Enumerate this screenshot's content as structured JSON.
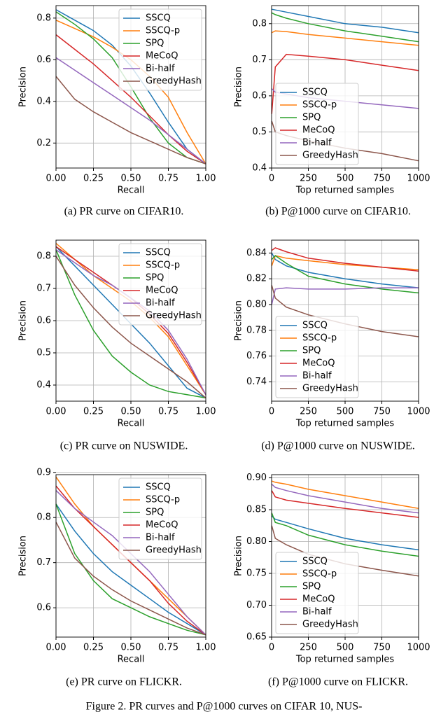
{
  "figure_caption": "Figure 2. PR curves and P@1000 curves on CIFAR 10, NUS-",
  "chart_data": [
    {
      "type": "line",
      "caption": "(a) PR curve on CIFAR10.",
      "xlabel": "Recall",
      "ylabel": "Precision",
      "legend": "upper right",
      "grid": true,
      "xlim": [
        0,
        1
      ],
      "xticks": [
        {
          "value": 0,
          "label": "0.00"
        },
        0.25,
        {
          "value": 0.5,
          "label": "0.50"
        },
        0.75,
        {
          "value": 1,
          "label": "1.00"
        }
      ],
      "ylim": [
        0.08,
        0.86
      ],
      "yticks": [
        0.2,
        0.4,
        0.6,
        0.8
      ],
      "x": [
        0,
        0.125,
        0.25,
        0.375,
        0.5,
        0.625,
        0.75,
        0.875,
        1
      ],
      "series": [
        {
          "name": "SSCQ",
          "color": "#1f77b4",
          "values": [
            0.84,
            0.79,
            0.74,
            0.67,
            0.57,
            0.44,
            0.3,
            0.17,
            0.1
          ]
        },
        {
          "name": "SSCQ-p",
          "color": "#ff7f0e",
          "values": [
            0.79,
            0.75,
            0.71,
            0.66,
            0.6,
            0.52,
            0.42,
            0.25,
            0.1
          ]
        },
        {
          "name": "SPQ",
          "color": "#2ca02c",
          "values": [
            0.83,
            0.77,
            0.7,
            0.61,
            0.47,
            0.32,
            0.2,
            0.13,
            0.1
          ]
        },
        {
          "name": "MeCoQ",
          "color": "#d62728",
          "values": [
            0.72,
            0.65,
            0.58,
            0.5,
            0.42,
            0.33,
            0.24,
            0.16,
            0.1
          ]
        },
        {
          "name": "Bi-half",
          "color": "#9467bd",
          "values": [
            0.61,
            0.55,
            0.49,
            0.43,
            0.37,
            0.31,
            0.24,
            0.17,
            0.1
          ]
        },
        {
          "name": "GreedyHash",
          "color": "#8c564b",
          "values": [
            0.52,
            0.41,
            0.35,
            0.3,
            0.25,
            0.21,
            0.17,
            0.13,
            0.1
          ]
        }
      ]
    },
    {
      "type": "line",
      "caption": "(b) P@1000 curve on CIFAR10.",
      "xlabel": "Top returned samples",
      "ylabel": "Precision",
      "legend": "lower left",
      "grid": true,
      "xlim": [
        0,
        1000
      ],
      "xticks": [
        0,
        250,
        500,
        750,
        1000
      ],
      "ylim": [
        0.4,
        0.85
      ],
      "yticks": [
        0.4,
        0.5,
        0.6,
        0.7,
        0.8
      ],
      "x": [
        1,
        25,
        100,
        250,
        500,
        750,
        1000
      ],
      "series": [
        {
          "name": "SSCQ",
          "color": "#1f77b4",
          "values": [
            0.84,
            0.838,
            0.832,
            0.82,
            0.8,
            0.79,
            0.775
          ]
        },
        {
          "name": "SSCQ-p",
          "color": "#ff7f0e",
          "values": [
            0.775,
            0.78,
            0.778,
            0.77,
            0.76,
            0.75,
            0.74
          ]
        },
        {
          "name": "SPQ",
          "color": "#2ca02c",
          "values": [
            0.83,
            0.825,
            0.815,
            0.8,
            0.78,
            0.765,
            0.75
          ]
        },
        {
          "name": "MeCoQ",
          "color": "#d62728",
          "values": [
            0.55,
            0.68,
            0.715,
            0.71,
            0.7,
            0.685,
            0.67
          ]
        },
        {
          "name": "Bi-half",
          "color": "#9467bd",
          "values": [
            0.62,
            0.61,
            0.605,
            0.595,
            0.585,
            0.575,
            0.565
          ]
        },
        {
          "name": "GreedyHash",
          "color": "#8c564b",
          "values": [
            0.53,
            0.5,
            0.49,
            0.475,
            0.455,
            0.44,
            0.42
          ]
        }
      ]
    },
    {
      "type": "line",
      "caption": "(c) PR curve on NUSWIDE.",
      "xlabel": "Recall",
      "ylabel": "Precision",
      "legend": "upper right",
      "grid": true,
      "xlim": [
        0,
        1
      ],
      "xticks": [
        {
          "value": 0,
          "label": "0.00"
        },
        0.25,
        {
          "value": 0.5,
          "label": "0.50"
        },
        0.75,
        {
          "value": 1,
          "label": "1.00"
        }
      ],
      "ylim": [
        0.35,
        0.85
      ],
      "yticks": [
        0.4,
        0.5,
        0.6,
        0.7,
        0.8
      ],
      "x": [
        0,
        0.125,
        0.25,
        0.375,
        0.5,
        0.625,
        0.75,
        0.875,
        1
      ],
      "series": [
        {
          "name": "SSCQ",
          "color": "#1f77b4",
          "values": [
            0.83,
            0.77,
            0.71,
            0.65,
            0.59,
            0.53,
            0.46,
            0.39,
            0.36
          ]
        },
        {
          "name": "SSCQ-p",
          "color": "#ff7f0e",
          "values": [
            0.84,
            0.79,
            0.74,
            0.7,
            0.66,
            0.61,
            0.55,
            0.46,
            0.37
          ]
        },
        {
          "name": "SPQ",
          "color": "#2ca02c",
          "values": [
            0.82,
            0.68,
            0.57,
            0.49,
            0.44,
            0.4,
            0.38,
            0.37,
            0.36
          ]
        },
        {
          "name": "MeCoQ",
          "color": "#d62728",
          "values": [
            0.83,
            0.79,
            0.75,
            0.71,
            0.67,
            0.62,
            0.56,
            0.47,
            0.37
          ]
        },
        {
          "name": "Bi-half",
          "color": "#9467bd",
          "values": [
            0.82,
            0.78,
            0.74,
            0.71,
            0.67,
            0.63,
            0.57,
            0.48,
            0.37
          ]
        },
        {
          "name": "GreedyHash",
          "color": "#8c564b",
          "values": [
            0.8,
            0.71,
            0.64,
            0.58,
            0.53,
            0.49,
            0.45,
            0.41,
            0.36
          ]
        }
      ]
    },
    {
      "type": "line",
      "caption": "(d) P@1000 curve on NUSWIDE.",
      "xlabel": "Top returned samples",
      "ylabel": "Precision",
      "legend": "lower left",
      "grid": true,
      "xlim": [
        0,
        1000
      ],
      "xticks": [
        0,
        250,
        500,
        750,
        1000
      ],
      "ylim": [
        0.725,
        0.85
      ],
      "yticks": [
        0.74,
        0.76,
        0.78,
        {
          "value": 0.8,
          "label": "0.80"
        },
        0.82,
        0.84
      ],
      "x": [
        1,
        25,
        100,
        250,
        500,
        750,
        1000
      ],
      "series": [
        {
          "name": "SSCQ",
          "color": "#1f77b4",
          "values": [
            0.84,
            0.835,
            0.83,
            0.825,
            0.82,
            0.816,
            0.813
          ]
        },
        {
          "name": "SSCQ-p",
          "color": "#ff7f0e",
          "values": [
            0.83,
            0.838,
            0.836,
            0.834,
            0.831,
            0.829,
            0.827
          ]
        },
        {
          "name": "SPQ",
          "color": "#2ca02c",
          "values": [
            0.835,
            0.838,
            0.832,
            0.822,
            0.816,
            0.812,
            0.809
          ]
        },
        {
          "name": "MeCoQ",
          "color": "#d62728",
          "values": [
            0.842,
            0.844,
            0.841,
            0.836,
            0.832,
            0.829,
            0.826
          ]
        },
        {
          "name": "Bi-half",
          "color": "#9467bd",
          "values": [
            0.8,
            0.812,
            0.813,
            0.812,
            0.812,
            0.813,
            0.813
          ]
        },
        {
          "name": "GreedyHash",
          "color": "#8c564b",
          "values": [
            0.815,
            0.805,
            0.798,
            0.792,
            0.785,
            0.779,
            0.775
          ]
        }
      ]
    },
    {
      "type": "line",
      "caption": "(e) PR curve on FLICKR.",
      "xlabel": "Recall",
      "ylabel": "Precision",
      "legend": "upper right",
      "grid": true,
      "xlim": [
        0,
        1
      ],
      "xticks": [
        {
          "value": 0,
          "label": "0.00"
        },
        0.25,
        {
          "value": 0.5,
          "label": "0.50"
        },
        0.75,
        {
          "value": 1,
          "label": "1.00"
        }
      ],
      "ylim": [
        0.535,
        0.895
      ],
      "yticks": [
        0.6,
        0.7,
        0.8,
        0.9
      ],
      "x": [
        0,
        0.125,
        0.25,
        0.375,
        0.5,
        0.625,
        0.75,
        0.875,
        1
      ],
      "series": [
        {
          "name": "SSCQ",
          "color": "#1f77b4",
          "values": [
            0.83,
            0.77,
            0.72,
            0.68,
            0.65,
            0.62,
            0.59,
            0.565,
            0.54
          ]
        },
        {
          "name": "SSCQ-p",
          "color": "#ff7f0e",
          "values": [
            0.89,
            0.83,
            0.78,
            0.74,
            0.7,
            0.66,
            0.62,
            0.58,
            0.54
          ]
        },
        {
          "name": "SPQ",
          "color": "#2ca02c",
          "values": [
            0.83,
            0.72,
            0.66,
            0.62,
            0.6,
            0.58,
            0.565,
            0.55,
            0.54
          ]
        },
        {
          "name": "MeCoQ",
          "color": "#d62728",
          "values": [
            0.87,
            0.82,
            0.78,
            0.74,
            0.7,
            0.66,
            0.61,
            0.57,
            0.54
          ]
        },
        {
          "name": "Bi-half",
          "color": "#9467bd",
          "values": [
            0.86,
            0.82,
            0.79,
            0.76,
            0.72,
            0.68,
            0.63,
            0.58,
            0.54
          ]
        },
        {
          "name": "GreedyHash",
          "color": "#8c564b",
          "values": [
            0.79,
            0.71,
            0.67,
            0.64,
            0.615,
            0.595,
            0.575,
            0.555,
            0.54
          ]
        }
      ]
    },
    {
      "type": "line",
      "caption": "(f) P@1000 curve on FLICKR.",
      "xlabel": "Top returned samples",
      "ylabel": "Precision",
      "legend": "lower left",
      "grid": true,
      "xlim": [
        0,
        1000
      ],
      "xticks": [
        0,
        250,
        500,
        750,
        1000
      ],
      "ylim": [
        0.65,
        0.905
      ],
      "yticks": [
        0.65,
        {
          "value": 0.7,
          "label": "0.70"
        },
        0.75,
        {
          "value": 0.8,
          "label": "0.80"
        },
        0.85,
        {
          "value": 0.9,
          "label": "0.90"
        }
      ],
      "x": [
        1,
        25,
        100,
        250,
        500,
        750,
        1000
      ],
      "series": [
        {
          "name": "SSCQ",
          "color": "#1f77b4",
          "values": [
            0.84,
            0.835,
            0.83,
            0.82,
            0.805,
            0.795,
            0.787
          ]
        },
        {
          "name": "SSCQ-p",
          "color": "#ff7f0e",
          "values": [
            0.895,
            0.893,
            0.89,
            0.882,
            0.872,
            0.862,
            0.852
          ]
        },
        {
          "name": "SPQ",
          "color": "#2ca02c",
          "values": [
            0.845,
            0.83,
            0.825,
            0.81,
            0.795,
            0.785,
            0.777
          ]
        },
        {
          "name": "MeCoQ",
          "color": "#d62728",
          "values": [
            0.88,
            0.87,
            0.865,
            0.86,
            0.852,
            0.845,
            0.838
          ]
        },
        {
          "name": "Bi-half",
          "color": "#9467bd",
          "values": [
            0.89,
            0.885,
            0.88,
            0.872,
            0.862,
            0.852,
            0.845
          ]
        },
        {
          "name": "GreedyHash",
          "color": "#8c564b",
          "values": [
            0.825,
            0.805,
            0.795,
            0.78,
            0.765,
            0.755,
            0.746
          ]
        }
      ]
    }
  ]
}
